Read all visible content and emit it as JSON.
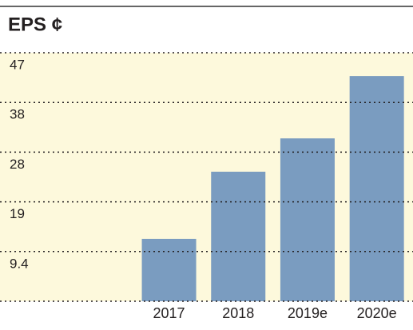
{
  "chart_data": {
    "type": "bar",
    "title": "EPS ¢",
    "categories": [
      "2017",
      "2018",
      "2019e",
      "2020e"
    ],
    "values": [
      11.8,
      24.5,
      30.8,
      42.6
    ],
    "color": "#7a9cc0",
    "ylim": [
      0,
      47
    ],
    "yticks": [
      9.4,
      {
        "value": 18.8,
        "label": "19"
      },
      {
        "value": 28.2,
        "label": "28"
      },
      {
        "value": 37.6,
        "label": "38"
      },
      47
    ],
    "grid": true
  }
}
